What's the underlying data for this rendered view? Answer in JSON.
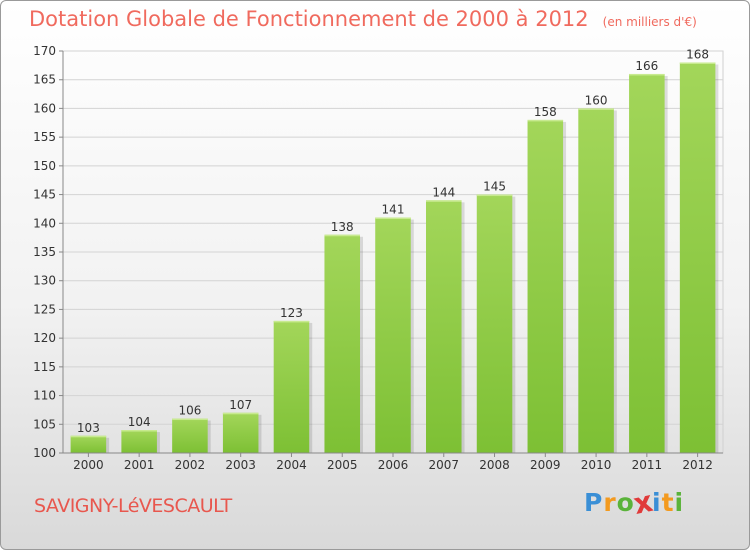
{
  "chart_data": {
    "type": "bar",
    "title": "Dotation Globale de Fonctionnement de 2000 à 2012",
    "subtitle": "(en milliers d'€)",
    "categories": [
      "2000",
      "2001",
      "2002",
      "2003",
      "2004",
      "2005",
      "2006",
      "2007",
      "2008",
      "2009",
      "2010",
      "2011",
      "2012"
    ],
    "values": [
      103,
      104,
      106,
      107,
      123,
      138,
      141,
      144,
      145,
      158,
      160,
      166,
      168
    ],
    "ylim": [
      100,
      170
    ],
    "yticks": [
      100,
      105,
      110,
      115,
      120,
      125,
      130,
      135,
      140,
      145,
      150,
      155,
      160,
      165,
      170
    ],
    "grid": true,
    "bar_color": "#7dc034",
    "bar_color_light": "#a3d65a"
  },
  "commune": "SAVIGNY-LéVESCAULT",
  "logo": {
    "letters": [
      "P",
      "r",
      "o",
      "x",
      "i",
      "t",
      "i"
    ],
    "colors": [
      "#3a8fd6",
      "#f39a1f",
      "#5ab33a",
      "#e03a3a",
      "#3a8fd6",
      "#f39a1f",
      "#5ab33a"
    ]
  }
}
